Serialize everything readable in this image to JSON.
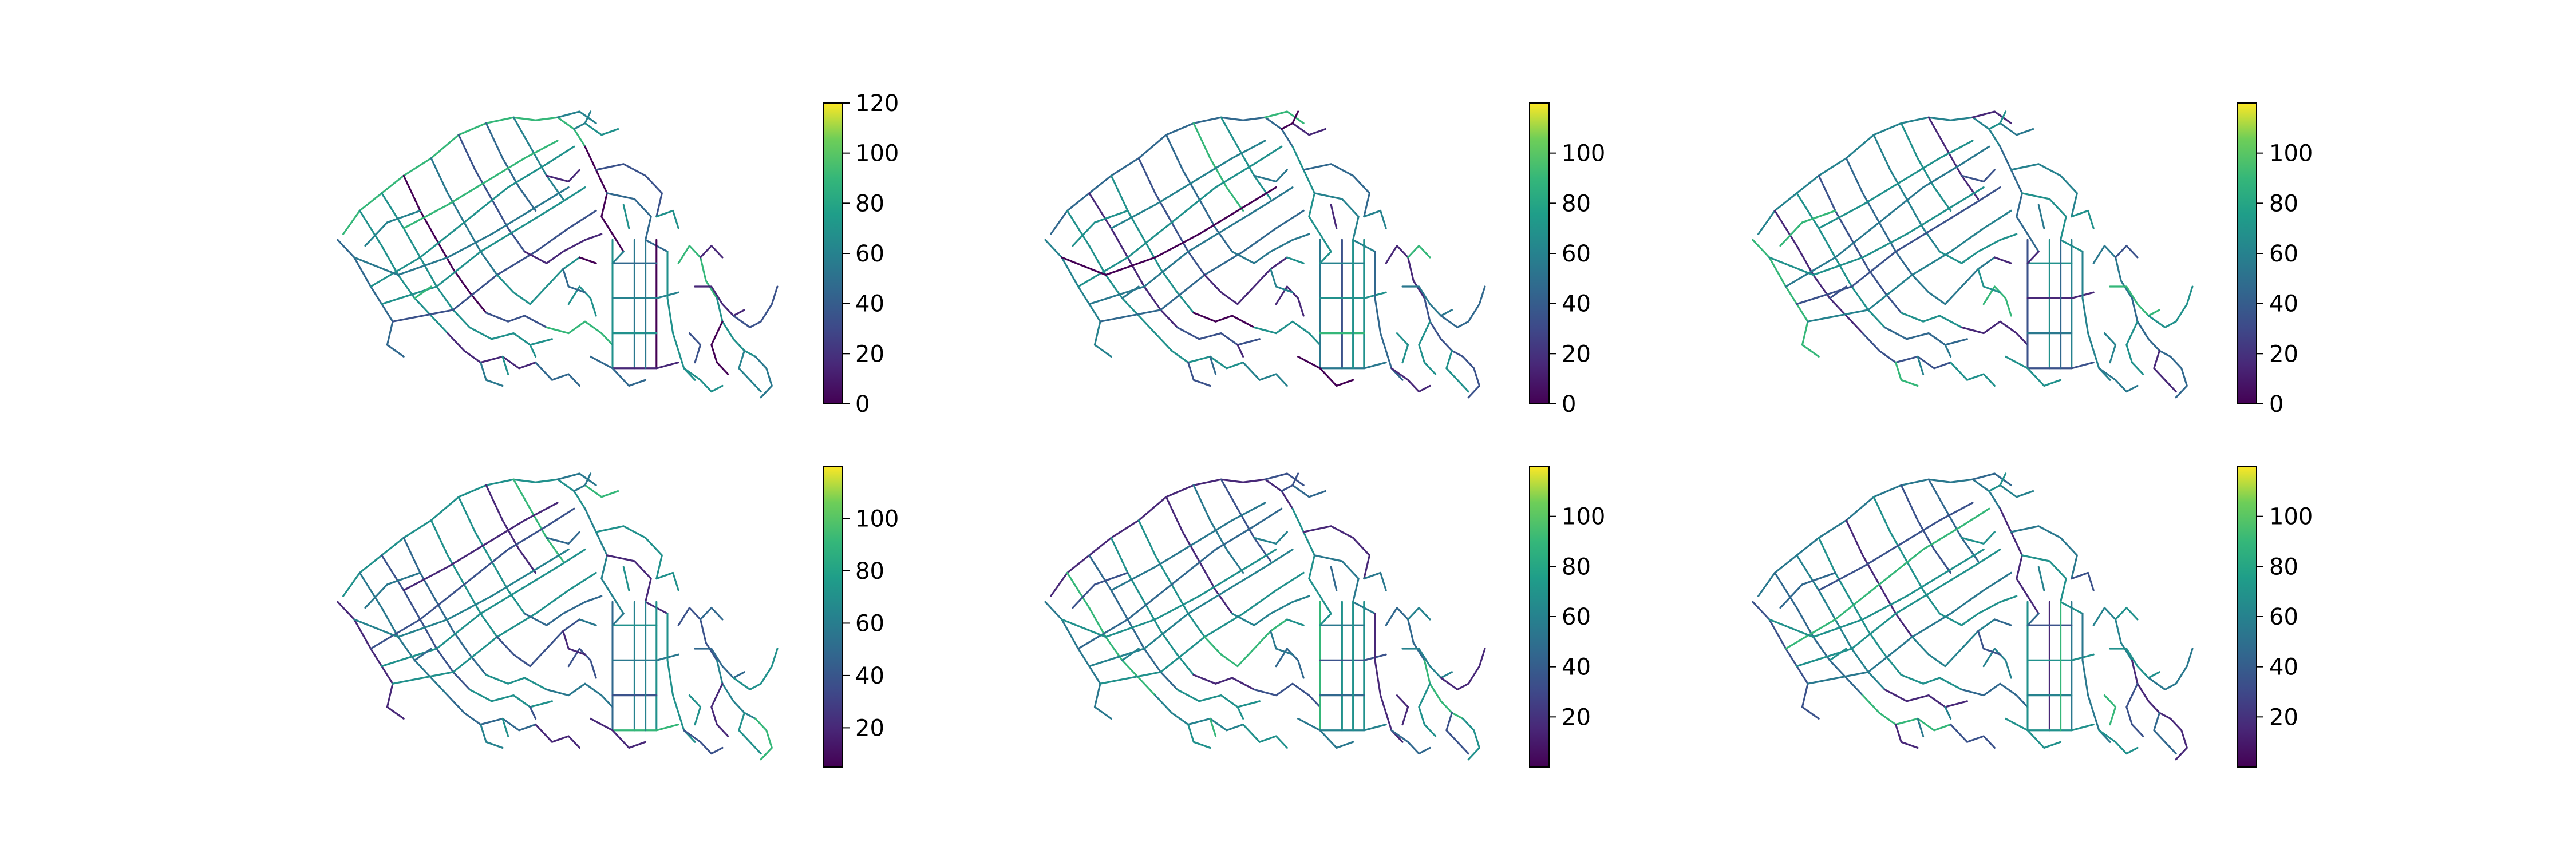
{
  "figure": {
    "type": "map-grid",
    "rows": 2,
    "cols": 3,
    "colormap_name": "viridis",
    "colormap_stops": [
      "#440154",
      "#3b528b",
      "#21918c",
      "#5ec962",
      "#fde725"
    ],
    "line_color_mix": [
      "#3b528b",
      "#31688e",
      "#26828e",
      "#21918c",
      "#482878",
      "#2a788e"
    ],
    "panels": [
      {
        "id": "panel-1",
        "colorbar": {
          "min": 0,
          "max": 120,
          "ticks": [
            "0",
            "20",
            "40",
            "60",
            "80",
            "100",
            "120"
          ]
        }
      },
      {
        "id": "panel-2",
        "colorbar": {
          "min": 0,
          "max": 120,
          "ticks": [
            "0",
            "20",
            "40",
            "60",
            "80",
            "100"
          ]
        }
      },
      {
        "id": "panel-3",
        "colorbar": {
          "min": 0,
          "max": 120,
          "ticks": [
            "0",
            "20",
            "40",
            "60",
            "80",
            "100"
          ]
        }
      },
      {
        "id": "panel-4",
        "colorbar": {
          "min": 5,
          "max": 120,
          "ticks": [
            "20",
            "40",
            "60",
            "80",
            "100"
          ]
        }
      },
      {
        "id": "panel-5",
        "colorbar": {
          "min": 0,
          "max": 120,
          "ticks": [
            "20",
            "40",
            "60",
            "80",
            "100"
          ]
        }
      },
      {
        "id": "panel-6",
        "colorbar": {
          "min": 0,
          "max": 120,
          "ticks": [
            "20",
            "40",
            "60",
            "80",
            "100"
          ]
        }
      }
    ]
  }
}
